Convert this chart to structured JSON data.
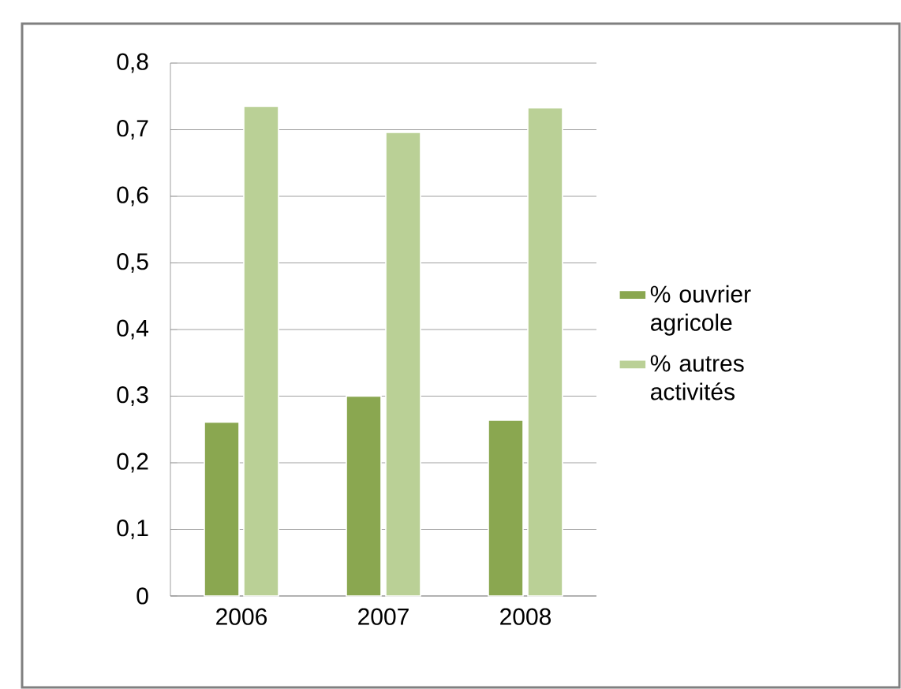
{
  "chart_data": {
    "type": "bar",
    "categories": [
      "2006",
      "2007",
      "2008"
    ],
    "series": [
      {
        "name": "% ouvrier agricole",
        "color": "#8aa750",
        "values": [
          0.261,
          0.3,
          0.264
        ]
      },
      {
        "name": "% autres activités",
        "color": "#bad096",
        "values": [
          0.735,
          0.696,
          0.733
        ]
      }
    ],
    "ylim": [
      0,
      0.8
    ],
    "yticks": [
      0,
      {
        "value": 0.1,
        "label": "0,1"
      },
      {
        "value": 0.2,
        "label": "0,2"
      },
      {
        "value": 0.3,
        "label": "0,3"
      },
      {
        "value": 0.4,
        "label": "0,4"
      },
      {
        "value": 0.5,
        "label": "0,5"
      },
      {
        "value": 0.6,
        "label": "0,6"
      },
      {
        "value": 0.7,
        "label": "0,7"
      },
      {
        "value": 0.8,
        "label": "0,8"
      }
    ],
    "grid": "y",
    "legend": "right"
  }
}
